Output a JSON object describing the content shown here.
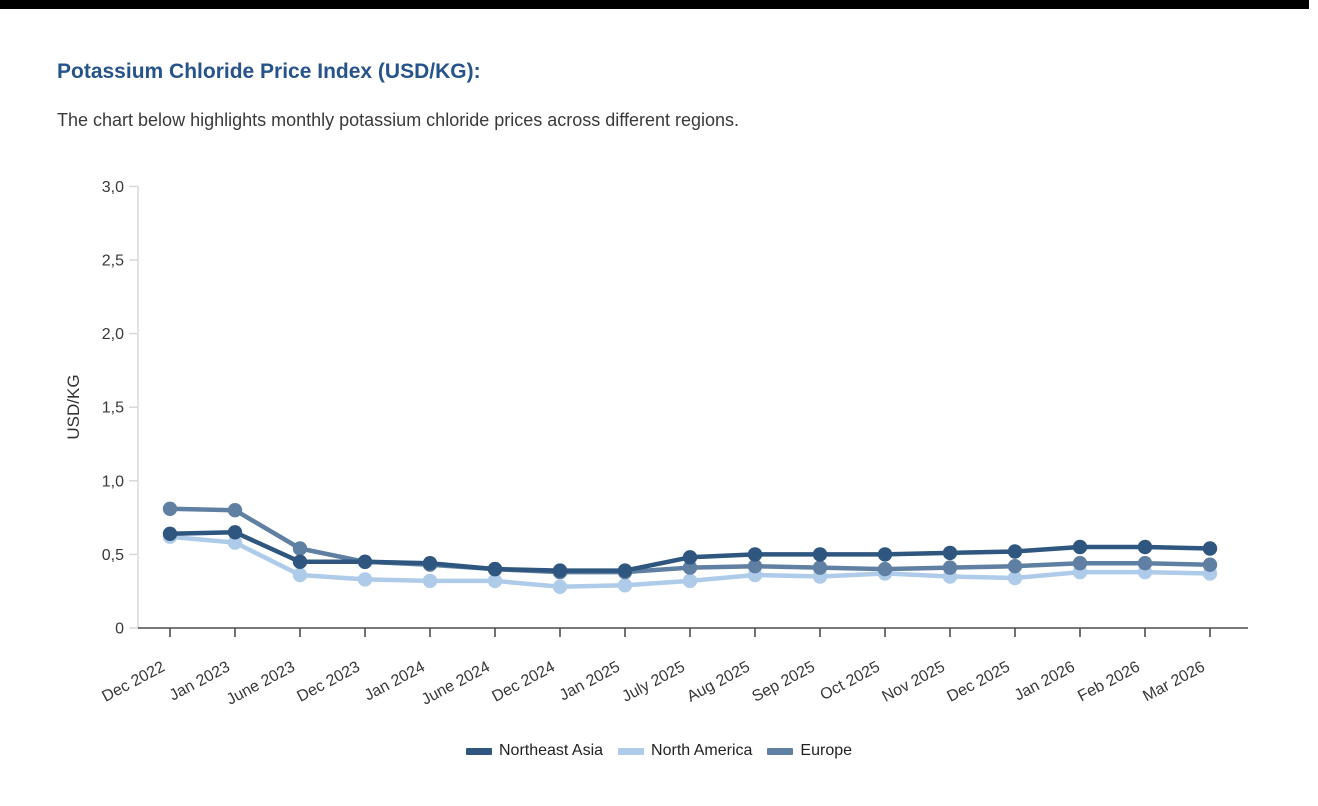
{
  "top_bar": {
    "color": "#000000"
  },
  "header": {
    "title": "Potassium Chloride Price Index (USD/KG):",
    "title_color": "#25538A",
    "subtitle": "The chart below highlights monthly potassium chloride prices across different regions."
  },
  "chart_data": {
    "type": "line",
    "title": "",
    "xlabel": "",
    "ylabel": "USD/KG",
    "ylim": [
      0,
      3.0
    ],
    "grid": false,
    "markers": true,
    "legend_position": "bottom-center",
    "y_ticks": {
      "values": [
        0,
        0.5,
        1.0,
        1.5,
        2.0,
        2.5,
        3.0
      ],
      "labels": [
        "0",
        "0,5",
        "1,0",
        "1,5",
        "2,0",
        "2,5",
        "3,0"
      ]
    },
    "categories": [
      "Dec 2022",
      "Jan 2023",
      "June 2023",
      "Dec 2023",
      "Jan 2024",
      "June 2024",
      "Dec 2024",
      "Jan 2025",
      "July 2025",
      "Aug 2025",
      "Sep 2025",
      "Oct 2025",
      "Nov 2025",
      "Dec 2025",
      "Jan 2026",
      "Feb 2026",
      "Mar 2026"
    ],
    "series": [
      {
        "name": "Northeast Asia",
        "color": "#2E567E",
        "values": [
          0.64,
          0.65,
          0.45,
          0.45,
          0.44,
          0.4,
          0.39,
          0.39,
          0.48,
          0.5,
          0.5,
          0.5,
          0.51,
          0.52,
          0.55,
          0.55,
          0.54
        ]
      },
      {
        "name": "North America",
        "color": "#AECBE9",
        "values": [
          0.62,
          0.58,
          0.36,
          0.33,
          0.32,
          0.32,
          0.28,
          0.29,
          0.32,
          0.36,
          0.35,
          0.37,
          0.35,
          0.34,
          0.38,
          0.38,
          0.37
        ]
      },
      {
        "name": "Europe",
        "color": "#5F80A2",
        "values": [
          0.81,
          0.8,
          0.54,
          0.45,
          0.43,
          0.4,
          0.38,
          0.38,
          0.41,
          0.42,
          0.41,
          0.4,
          0.41,
          0.42,
          0.44,
          0.44,
          0.43
        ]
      }
    ],
    "axis_colors": {
      "x_axis": "#4d4d4d",
      "y_axis": "#d9d9d9"
    }
  }
}
